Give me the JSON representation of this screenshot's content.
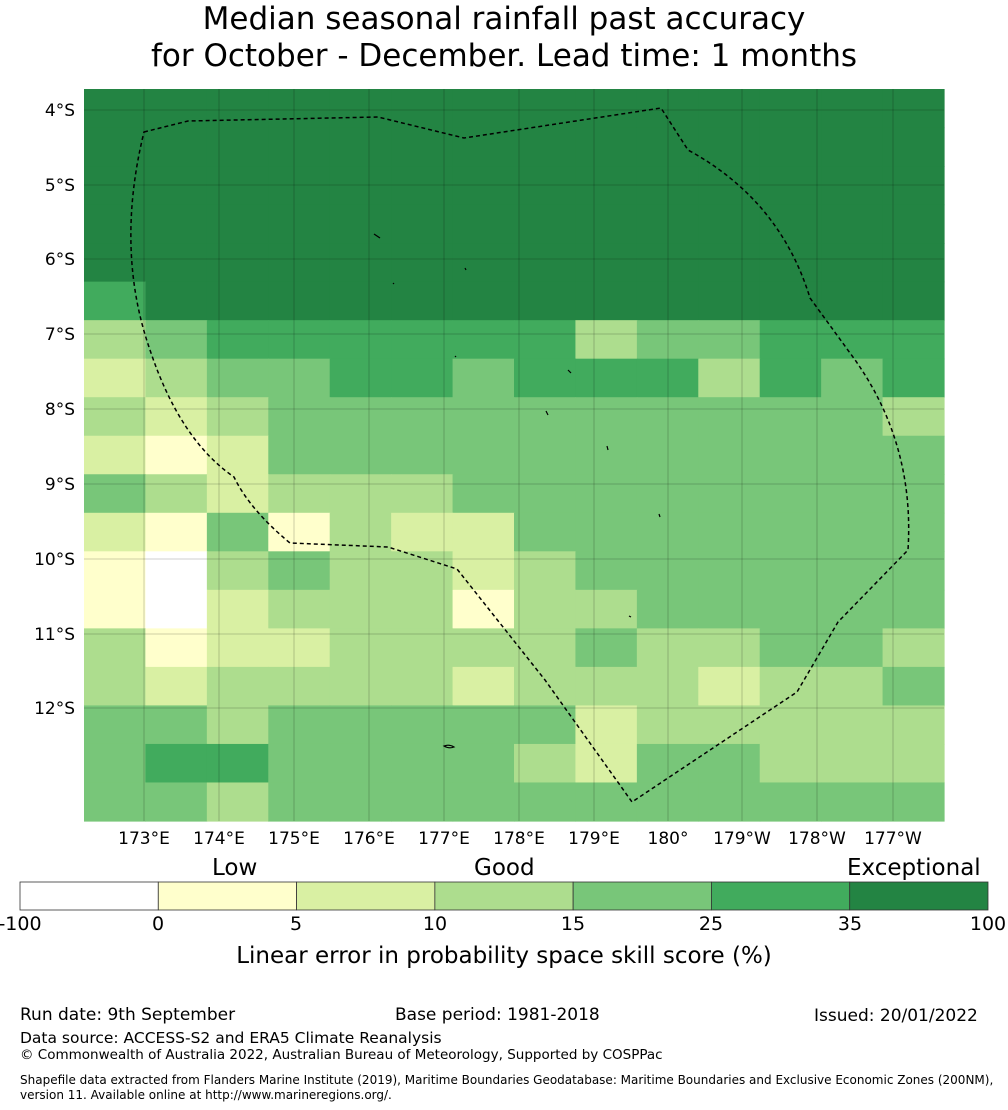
{
  "title": {
    "line1": "Median seasonal rainfall past accuracy",
    "line2": "for October - December. Lead time: 1 months"
  },
  "map": {
    "lat_labels": [
      "4°S",
      "5°S",
      "6°S",
      "7°S",
      "8°S",
      "9°S",
      "10°S",
      "11°S",
      "12°S"
    ],
    "lon_labels": [
      "173°E",
      "174°E",
      "175°E",
      "176°E",
      "177°E",
      "178°E",
      "179°E",
      "180°",
      "179°W",
      "178°W",
      "177°W"
    ],
    "grid_rows": [
      "66666666666666",
      "66666666666666",
      "66666666666666",
      "66666666666666",
      "66666666666666",
      "56666666666666",
      "34555555344555",
      "23445545553545",
      "32344444444443",
      "21244444444444",
      "43233344444444",
      "21413224444444",
      "10343323444444",
      "10233313344444",
      "31223333433443",
      "32333323332334",
      "44344444233333",
      "45544443244333",
      "44344444444444"
    ],
    "colors": [
      "#ffffff",
      "#ffffcc",
      "#d9f0a3",
      "#addd8e",
      "#78c679",
      "#41ab5d",
      "#238443"
    ]
  },
  "colorbar": {
    "categories": [
      "Low",
      "Good",
      "Exceptional"
    ],
    "ticks": [
      "-100",
      "0",
      "5",
      "10",
      "15",
      "25",
      "35",
      "100"
    ],
    "label": "Linear error in probability space skill score (%)"
  },
  "footer": {
    "run_date": "Run date: 9th September",
    "base_period": "Base period: 1981-2018",
    "issued": "Issued: 20/01/2022",
    "data_source": "Data source: ACCESS-S2 and ERA5 Climate Reanalysis",
    "copyright": "© Commonwealth of Australia 2022, Australian Bureau of Meteorology, Supported by COSPPac",
    "shapefile_line1": "Shapefile data extracted from Flanders Marine Institute (2019), Maritime Boundaries Geodatabase: Maritime Boundaries and Exclusive Economic Zones (200NM),",
    "shapefile_line2": "version 11. Available online at http://www.marineregions.org/."
  }
}
